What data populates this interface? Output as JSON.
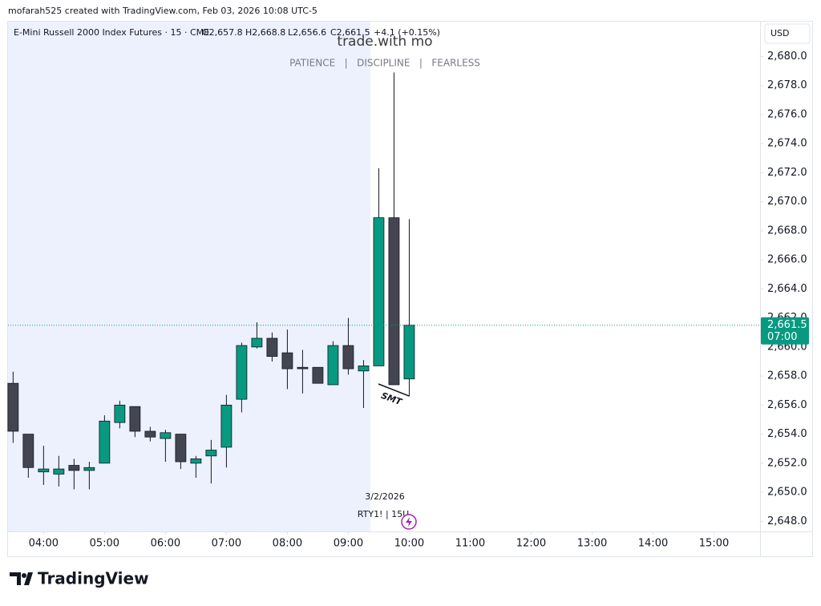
{
  "header": {
    "credit": "mofarah525 created with TradingView.com, Feb 03, 2026 10:08 UTC-5"
  },
  "chart_data": {
    "type": "candlestick",
    "symbol": "E-Mini Russell 2000 Index Futures · 15 · CME",
    "ohlc_labels": [
      "O2,657.8",
      "H2,668.8",
      "L2,656.6",
      "C2,661.5"
    ],
    "change": "+4.1 (+0.15%)",
    "title": "trade.with mo",
    "subtitle": "PATIENCE   |   DISCIPLINE   |   FEARLESS",
    "currency": "USD",
    "x": [
      "03:30",
      "03:45",
      "04:00",
      "04:15",
      "04:30",
      "04:45",
      "05:00",
      "05:15",
      "05:30",
      "05:45",
      "06:00",
      "06:15",
      "06:30",
      "06:45",
      "07:00",
      "07:15",
      "07:30",
      "07:45",
      "08:00",
      "08:15",
      "08:30",
      "08:45",
      "09:00",
      "09:15",
      "09:30",
      "09:45",
      "10:00"
    ],
    "open": [
      2657.5,
      2654.0,
      2651.4,
      2651.25,
      2651.85,
      2651.5,
      2652.0,
      2654.8,
      2655.9,
      2654.2,
      2653.7,
      2654.0,
      2652.0,
      2652.5,
      2653.1,
      2656.4,
      2660.0,
      2660.6,
      2659.6,
      2658.6,
      2658.6,
      2657.4,
      2660.1,
      2658.35,
      2658.7,
      2668.9,
      2657.8
    ],
    "high": [
      2658.3,
      2654.0,
      2653.2,
      2652.5,
      2652.3,
      2652.1,
      2655.3,
      2656.3,
      2655.9,
      2654.5,
      2654.3,
      2654.0,
      2652.5,
      2653.6,
      2656.7,
      2660.3,
      2661.7,
      2661.0,
      2661.2,
      2659.8,
      2658.6,
      2660.4,
      2662.0,
      2659.1,
      2672.3,
      2678.9,
      2668.8
    ],
    "low": [
      2653.4,
      2651.0,
      2650.5,
      2650.4,
      2650.2,
      2650.2,
      2652.0,
      2654.4,
      2653.8,
      2653.5,
      2652.1,
      2651.6,
      2651.0,
      2650.6,
      2651.7,
      2655.5,
      2659.9,
      2659.0,
      2657.1,
      2656.8,
      2657.5,
      2657.4,
      2658.1,
      2655.8,
      2658.7,
      2657.4,
      2656.6
    ],
    "close": [
      2654.2,
      2651.7,
      2651.6,
      2651.6,
      2651.5,
      2651.7,
      2654.9,
      2656.0,
      2654.2,
      2653.8,
      2654.1,
      2652.1,
      2652.3,
      2652.9,
      2656.0,
      2660.1,
      2660.6,
      2659.35,
      2658.5,
      2658.5,
      2657.5,
      2660.1,
      2658.5,
      2658.7,
      2668.9,
      2657.4,
      2661.5
    ],
    "up_color": "#089981",
    "down_color": "#434651",
    "xlim": [
      "03:25",
      "15:43"
    ],
    "xticks": [
      "04:00",
      "05:00",
      "06:00",
      "07:00",
      "08:00",
      "09:00",
      "10:00",
      "11:00",
      "12:00",
      "13:00",
      "14:00",
      "15:00"
    ],
    "ylim": [
      2647.3,
      2682.4
    ],
    "yticks": [
      {
        "value": 2648,
        "label": "2,648.0"
      },
      {
        "value": 2650,
        "label": "2,650.0"
      },
      {
        "value": 2652,
        "label": "2,652.0"
      },
      {
        "value": 2654,
        "label": "2,654.0"
      },
      {
        "value": 2656,
        "label": "2,656.0"
      },
      {
        "value": 2658,
        "label": "2,658.0"
      },
      {
        "value": 2660,
        "label": "2,660.0"
      },
      {
        "value": 2662,
        "label": "2,662.0"
      },
      {
        "value": 2664,
        "label": "2,664.0"
      },
      {
        "value": 2666,
        "label": "2,666.0"
      },
      {
        "value": 2668,
        "label": "2,668.0"
      },
      {
        "value": 2670,
        "label": "2,670.0"
      },
      {
        "value": 2672,
        "label": "2,672.0"
      },
      {
        "value": 2674,
        "label": "2,674.0"
      },
      {
        "value": 2676,
        "label": "2,676.0"
      },
      {
        "value": 2678,
        "label": "2,678.0"
      },
      {
        "value": 2680,
        "label": "2,680.0"
      }
    ],
    "last_price": {
      "value": 2661.5,
      "label": "2,661.5"
    },
    "countdown": "07:00",
    "annotation": "SMT",
    "session_date": "3/2/2026",
    "session_symbol": "RTY1! | 15U"
  },
  "footer": {
    "brand": "TradingView"
  }
}
